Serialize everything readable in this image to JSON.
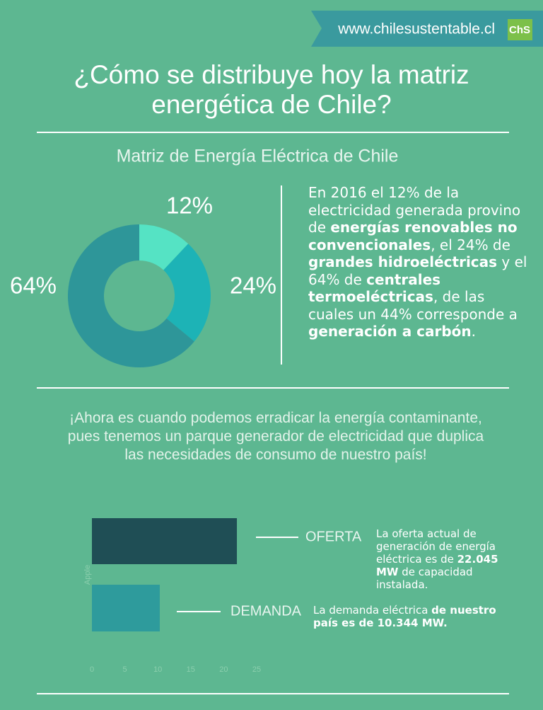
{
  "header": {
    "url": "www.chilesustentable.cl",
    "logo": "ChS"
  },
  "title_lines": [
    "¿Cómo se distribuye hoy la matriz",
    "energética de Chile?"
  ],
  "summary": {
    "runs": [
      {
        "text": "En 2016 el 12% de la electricidad generada provino de ",
        "bold": false
      },
      {
        "text": "energías renovables no convencionales",
        "bold": true
      },
      {
        "text": ", el 24% de ",
        "bold": false
      },
      {
        "text": "grandes hidroeléctricas",
        "bold": true
      },
      {
        "text": " y el 64% de ",
        "bold": false
      },
      {
        "text": "centrales termoeléctricas",
        "bold": true
      },
      {
        "text": ", de las cuales un 44% corresponde a ",
        "bold": false
      },
      {
        "text": "generación a carbón",
        "bold": true
      },
      {
        "text": ".",
        "bold": false
      }
    ]
  },
  "quote": "¡Ahora es cuando podemos erradicar la energía contaminante, pues  tenemos un parque generador de electricidad que duplica las necesidades de consumo de nuestro país!",
  "chart_data": [
    {
      "type": "pie",
      "title": "Matriz de Energía Eléctrica de Chile",
      "donut": true,
      "values": [
        12,
        24,
        64
      ],
      "value_labels": [
        "12%",
        "24%",
        "64%"
      ],
      "colors": [
        "#55e3c4",
        "#1db3b6",
        "#2e9699"
      ]
    },
    {
      "type": "bar",
      "orientation": "horizontal",
      "ylabel": "Apple",
      "categories": [
        "OFERTA",
        "DEMANDA"
      ],
      "values": [
        22,
        10.3
      ],
      "colors": [
        "#1f4e55",
        "#2e9b9c"
      ],
      "xlim": [
        0,
        25
      ],
      "xticks": [
        0,
        5,
        10,
        15,
        20,
        25
      ],
      "annotations": [
        {
          "runs": [
            {
              "text": "La oferta actual de generación de energía eléctrica es de ",
              "bold": false
            },
            {
              "text": "22.045 MW",
              "bold": true
            },
            {
              "text": " de capacidad instalada.",
              "bold": false
            }
          ]
        },
        {
          "runs": [
            {
              "text": "La demanda eléctrica ",
              "bold": false
            },
            {
              "text": "de nuestro país es de 10.344 MW.",
              "bold": true
            }
          ]
        }
      ]
    }
  ]
}
